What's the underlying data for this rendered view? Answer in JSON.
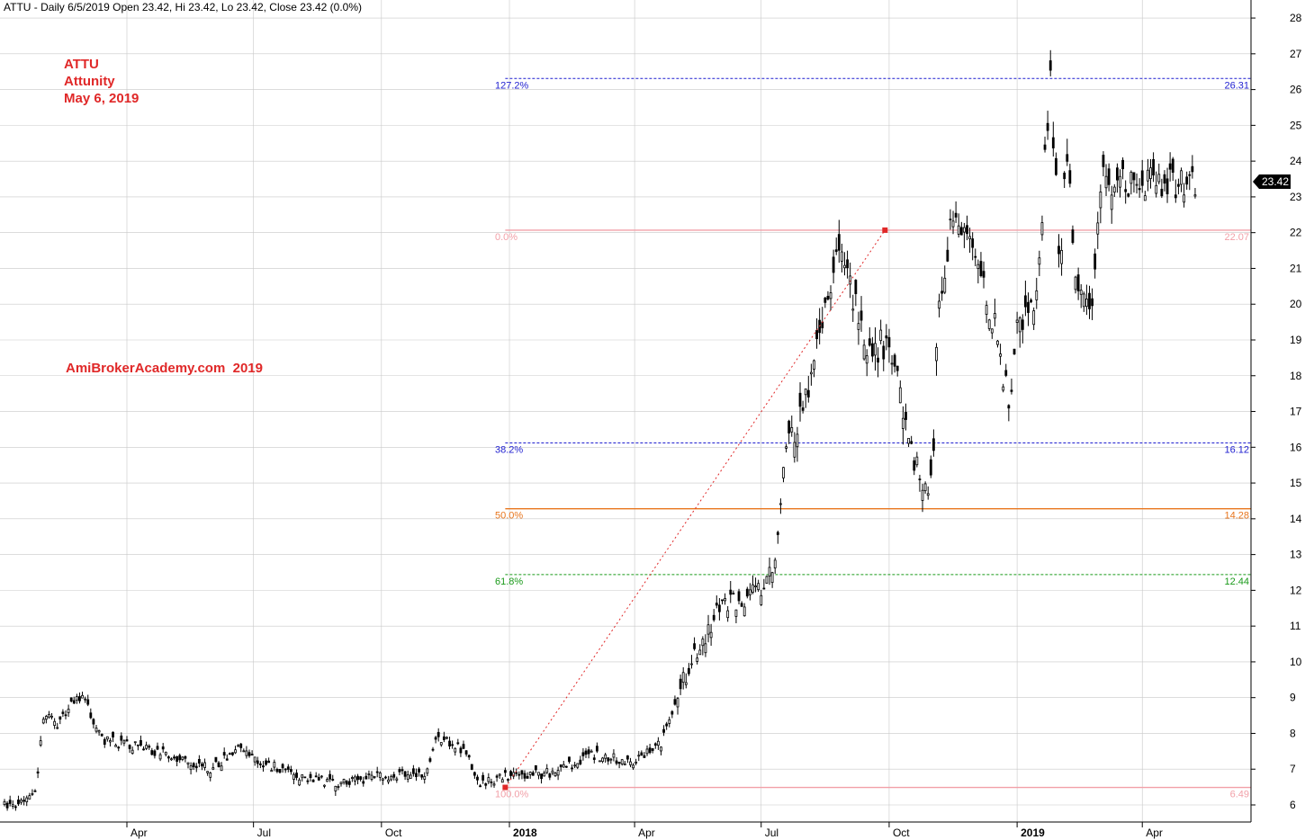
{
  "header": {
    "text": "ATTU - Daily 6/5/2019 Open 23.42, Hi 23.42, Lo 23.42, Close 23.42 (0.0%)"
  },
  "notes": {
    "ticker": "ATTU",
    "company": "Attunity",
    "date": "May 6, 2019",
    "watermark": "AmiBrokerAcademy.com  2019"
  },
  "last_price_label": "23.42",
  "colors": {
    "candles": "#000000",
    "annotation": "#e02828",
    "fib_127": "#1f1fd0",
    "fib_0": "#f2a0a8",
    "fib_382": "#1f1fd0",
    "fib_50": "#e8761e",
    "fib_618": "#1a9a1a",
    "fib_100": "#f2a0a8",
    "trend_line": "#e02828",
    "grid": "#c8c8c8"
  },
  "chart_data": {
    "type": "candlestick",
    "title": "ATTU - Daily 6/5/2019 Open 23.42, Hi 23.42, Lo 23.42, Close 23.42 (0.0%)",
    "y_range": [
      5.5,
      28.5
    ],
    "y_ticks": [
      6,
      7,
      8,
      9,
      10,
      11,
      12,
      13,
      14,
      15,
      16,
      17,
      18,
      19,
      20,
      21,
      22,
      23,
      24,
      25,
      26,
      27,
      28
    ],
    "x_range": [
      "2017-01-03",
      "2019-06-05"
    ],
    "x_ticks": [
      {
        "label": "Apr",
        "date": "2017-04-01",
        "bold": false
      },
      {
        "label": "Jul",
        "date": "2017-07-01",
        "bold": false
      },
      {
        "label": "Oct",
        "date": "2017-10-01",
        "bold": false
      },
      {
        "label": "2018",
        "date": "2018-01-01",
        "bold": true
      },
      {
        "label": "Apr",
        "date": "2018-04-01",
        "bold": false
      },
      {
        "label": "Jul",
        "date": "2018-07-01",
        "bold": false
      },
      {
        "label": "Oct",
        "date": "2018-10-01",
        "bold": false
      },
      {
        "label": "2019",
        "date": "2019-01-01",
        "bold": true
      },
      {
        "label": "Apr",
        "date": "2019-04-01",
        "bold": false
      }
    ],
    "grid": true,
    "last_close": 23.42,
    "price_path": [
      {
        "date": "2017-01-03",
        "close": 6.0
      },
      {
        "date": "2017-01-20",
        "close": 6.1
      },
      {
        "date": "2017-01-26",
        "close": 6.5
      },
      {
        "date": "2017-01-31",
        "close": 8.5
      },
      {
        "date": "2017-02-10",
        "close": 8.3
      },
      {
        "date": "2017-02-20",
        "close": 8.8
      },
      {
        "date": "2017-03-01",
        "close": 9.0
      },
      {
        "date": "2017-03-15",
        "close": 7.8
      },
      {
        "date": "2017-04-01",
        "close": 7.7
      },
      {
        "date": "2017-05-01",
        "close": 7.4
      },
      {
        "date": "2017-06-01",
        "close": 7.0
      },
      {
        "date": "2017-06-20",
        "close": 7.6
      },
      {
        "date": "2017-07-01",
        "close": 7.3
      },
      {
        "date": "2017-08-01",
        "close": 6.8
      },
      {
        "date": "2017-09-01",
        "close": 6.6
      },
      {
        "date": "2017-10-01",
        "close": 6.8
      },
      {
        "date": "2017-11-01",
        "close": 6.9
      },
      {
        "date": "2017-11-10",
        "close": 7.9
      },
      {
        "date": "2017-12-01",
        "close": 7.5
      },
      {
        "date": "2017-12-10",
        "close": 6.6
      },
      {
        "date": "2018-01-01",
        "close": 6.8
      },
      {
        "date": "2018-02-01",
        "close": 6.9
      },
      {
        "date": "2018-03-01",
        "close": 7.4
      },
      {
        "date": "2018-04-01",
        "close": 7.2
      },
      {
        "date": "2018-04-20",
        "close": 7.7
      },
      {
        "date": "2018-05-01",
        "close": 9.0
      },
      {
        "date": "2018-05-15",
        "close": 10.2
      },
      {
        "date": "2018-06-01",
        "close": 11.5
      },
      {
        "date": "2018-07-01",
        "close": 12.0
      },
      {
        "date": "2018-07-12",
        "close": 12.8
      },
      {
        "date": "2018-07-17",
        "close": 15.8
      },
      {
        "date": "2018-08-01",
        "close": 17.2
      },
      {
        "date": "2018-08-15",
        "close": 19.5
      },
      {
        "date": "2018-08-28",
        "close": 21.7
      },
      {
        "date": "2018-09-05",
        "close": 20.2
      },
      {
        "date": "2018-09-15",
        "close": 18.7
      },
      {
        "date": "2018-10-01",
        "close": 18.9
      },
      {
        "date": "2018-10-15",
        "close": 16.2
      },
      {
        "date": "2018-10-29",
        "close": 14.7
      },
      {
        "date": "2018-11-02",
        "close": 16.3
      },
      {
        "date": "2018-11-05",
        "close": 19.5
      },
      {
        "date": "2018-11-15",
        "close": 22.5
      },
      {
        "date": "2018-12-01",
        "close": 21.4
      },
      {
        "date": "2018-12-15",
        "close": 19.5
      },
      {
        "date": "2018-12-26",
        "close": 17.3
      },
      {
        "date": "2019-01-01",
        "close": 19.2
      },
      {
        "date": "2019-01-15",
        "close": 20.4
      },
      {
        "date": "2019-01-25",
        "close": 26.2
      },
      {
        "date": "2019-02-01",
        "close": 21.0
      },
      {
        "date": "2019-02-05",
        "close": 24.8
      },
      {
        "date": "2019-02-12",
        "close": 20.8
      },
      {
        "date": "2019-02-25",
        "close": 20.0
      },
      {
        "date": "2019-03-01",
        "close": 23.5
      },
      {
        "date": "2019-04-01",
        "close": 23.35
      },
      {
        "date": "2019-05-01",
        "close": 23.42
      },
      {
        "date": "2019-05-10",
        "close": 23.42
      }
    ],
    "fibonacci": {
      "anchor_low": {
        "date": "2017-12-29",
        "price": 6.49
      },
      "anchor_high": {
        "date": "2018-09-28",
        "price": 22.07
      },
      "levels": [
        {
          "label": "127.2%",
          "value": 26.31,
          "value_label": "26.31",
          "color_key": "fib_127",
          "dash": true
        },
        {
          "label": "0.0%",
          "value": 22.07,
          "value_label": "22.07",
          "color_key": "fib_0",
          "dash": false
        },
        {
          "label": "38.2%",
          "value": 16.12,
          "value_label": "16.12",
          "color_key": "fib_382",
          "dash": true
        },
        {
          "label": "50.0%",
          "value": 14.28,
          "value_label": "14.28",
          "color_key": "fib_50",
          "dash": false
        },
        {
          "label": "61.8%",
          "value": 12.44,
          "value_label": "12.44",
          "color_key": "fib_618",
          "dash": true
        },
        {
          "label": "100.0%",
          "value": 6.49,
          "value_label": "6.49",
          "color_key": "fib_100",
          "dash": false
        }
      ]
    }
  }
}
